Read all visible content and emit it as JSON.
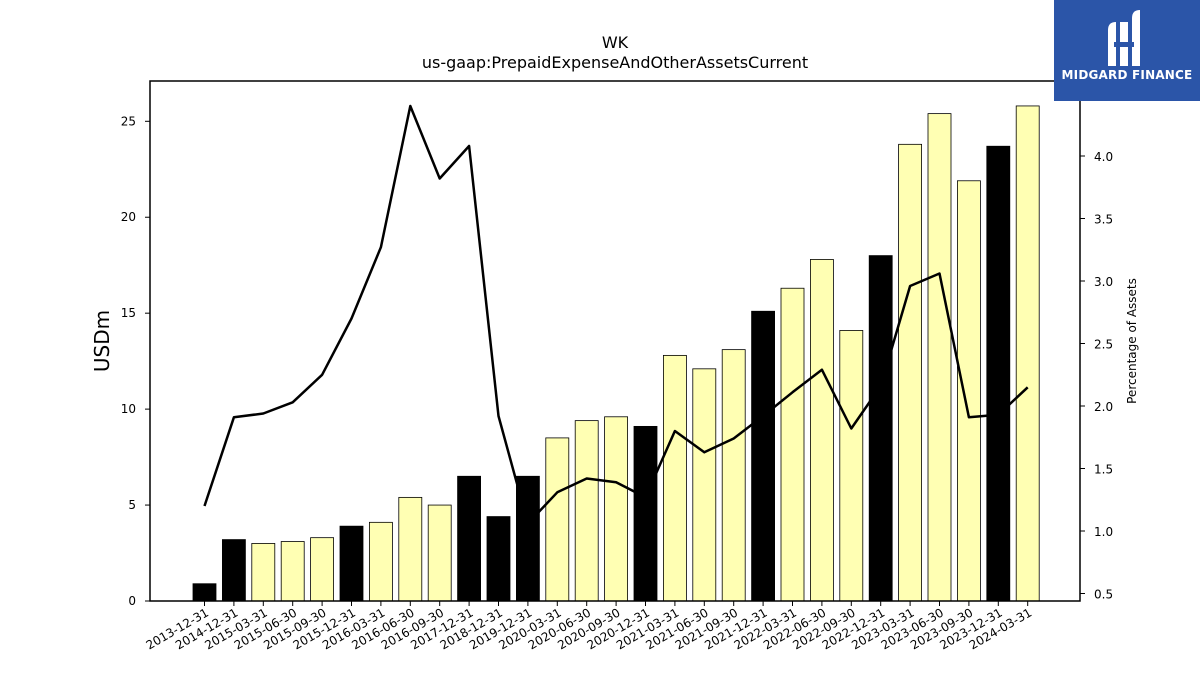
{
  "brand": {
    "name": "MIDGARD FINANCE",
    "icon": "midgard-logo-icon",
    "color": "#2b55a8"
  },
  "colors": {
    "highlight_bar": "#000000",
    "bar": "#ffffb3",
    "line": "#000000"
  },
  "chart_data": {
    "type": "bar",
    "title": "WK",
    "subtitle": "us-gaap:PrepaidExpenseAndOtherAssetsCurrent",
    "ylabel": "USDm",
    "y2label": "Percentage of Assets",
    "ylim": [
      0,
      27.1
    ],
    "y2lim": [
      0.44,
      4.6
    ],
    "yticks": [
      0,
      5,
      10,
      15,
      20,
      25
    ],
    "y2ticks": [
      0.5,
      1.0,
      1.5,
      2.0,
      2.5,
      3.0,
      3.5,
      4.0
    ],
    "categories": [
      "2013-12-31",
      "2014-12-31",
      "2015-03-31",
      "2015-06-30",
      "2015-09-30",
      "2015-12-31",
      "2016-03-31",
      "2016-06-30",
      "2016-09-30",
      "2017-12-31",
      "2018-12-31",
      "2019-12-31",
      "2020-03-31",
      "2020-06-30",
      "2020-09-30",
      "2020-12-31",
      "2021-03-31",
      "2021-06-30",
      "2021-09-30",
      "2021-12-31",
      "2022-03-31",
      "2022-06-30",
      "2022-09-30",
      "2022-12-31",
      "2023-03-31",
      "2023-06-30",
      "2023-09-30",
      "2023-12-31",
      "2024-03-31"
    ],
    "series": [
      {
        "type": "bar",
        "axis": "left",
        "values": [
          0.9,
          3.2,
          3.0,
          3.1,
          3.3,
          3.9,
          4.1,
          5.4,
          5.0,
          6.5,
          4.4,
          6.5,
          8.5,
          9.4,
          9.6,
          9.1,
          12.8,
          12.1,
          13.1,
          15.1,
          16.3,
          17.8,
          14.1,
          18.0,
          23.8,
          25.4,
          21.9,
          23.7,
          25.8
        ],
        "highlight": [
          true,
          true,
          false,
          false,
          false,
          true,
          false,
          false,
          false,
          true,
          true,
          true,
          false,
          false,
          false,
          true,
          false,
          false,
          false,
          true,
          false,
          false,
          false,
          true,
          false,
          false,
          false,
          true,
          false
        ]
      },
      {
        "type": "line",
        "axis": "right",
        "values": [
          1.2,
          1.91,
          1.94,
          2.03,
          2.25,
          2.7,
          3.27,
          4.4,
          3.82,
          4.08,
          1.92,
          1.06,
          1.31,
          1.42,
          1.39,
          1.27,
          1.8,
          1.63,
          1.74,
          1.92,
          2.11,
          2.29,
          1.82,
          2.16,
          2.96,
          3.06,
          1.91,
          1.93,
          2.15
        ]
      }
    ],
    "grid": false
  }
}
